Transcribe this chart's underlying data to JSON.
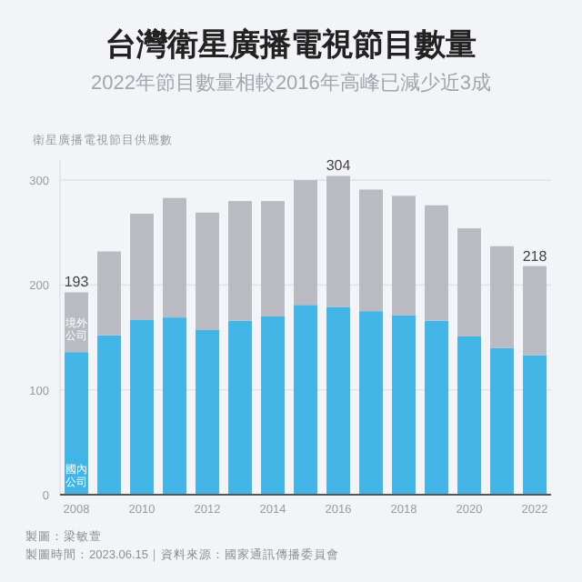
{
  "chart_data": {
    "type": "bar",
    "title": "台灣衛星廣播電視節目數量",
    "subtitle": "2022年節目數量相較2016年高峰已減少近3成",
    "ylabel": "衛星廣播電視節目供應數",
    "categories": [
      "2008",
      null,
      "2010",
      null,
      "2012",
      null,
      "2014",
      null,
      "2016",
      null,
      "2018",
      null,
      "2020",
      null,
      "2022"
    ],
    "stacked": true,
    "series": [
      {
        "name": "國內公司",
        "color": "#42b4e6",
        "values": [
          136,
          152,
          167,
          169,
          157,
          166,
          170,
          181,
          179,
          175,
          171,
          166,
          151,
          140,
          133
        ]
      },
      {
        "name": "境外公司",
        "color": "#b9bac2",
        "values": [
          57,
          80,
          101,
          114,
          112,
          114,
          110,
          119,
          125,
          116,
          114,
          110,
          103,
          97,
          85
        ]
      }
    ],
    "totals": [
      "193",
      null,
      null,
      null,
      null,
      null,
      null,
      null,
      "304",
      null,
      null,
      null,
      null,
      null,
      "218"
    ],
    "ylim": [
      0,
      320
    ],
    "yticks": [
      0,
      100,
      200,
      300
    ],
    "grid": "y",
    "legend": false,
    "annotations": [
      "製圖：梁敏萱",
      "製圖時間：2023.06.15｜資料來源：國家通訊傳播委員會"
    ]
  }
}
